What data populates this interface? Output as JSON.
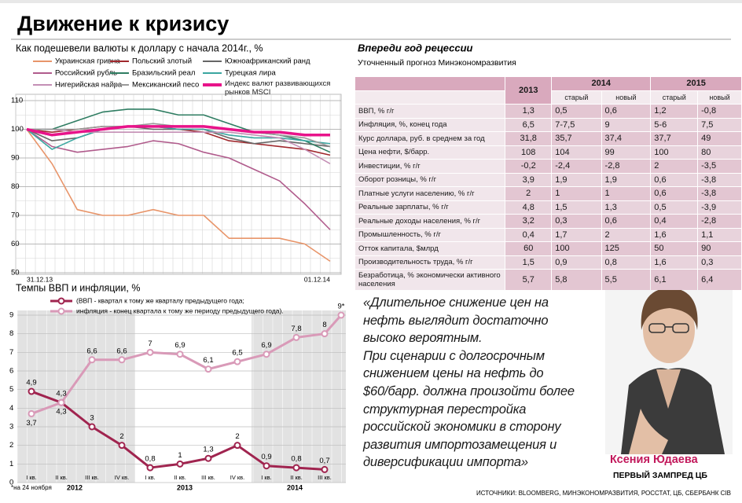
{
  "title": "Движение к кризису",
  "chart_data": [
    {
      "type": "line",
      "title": "Как подешевели валюты к  доллару с начала  2014г., %",
      "categories": [
        "31.12.13",
        null,
        null,
        null,
        null,
        null,
        null,
        null,
        null,
        null,
        null,
        null,
        "01.12.14"
      ],
      "ylim": [
        50,
        110
      ],
      "yticks": [
        50,
        60,
        70,
        80,
        90,
        100,
        110
      ],
      "grid": true,
      "series": [
        {
          "name": "Украинская гривна",
          "color": "#e8956a",
          "values": [
            100,
            88,
            72,
            70,
            70,
            72,
            70,
            70,
            62,
            62,
            62,
            60,
            54
          ]
        },
        {
          "name": "Польский злотый",
          "color": "#a0282d",
          "values": [
            100,
            99,
            100,
            101,
            101,
            101,
            100,
            99,
            96,
            95,
            94,
            93,
            91
          ]
        },
        {
          "name": "Южноафриканский ранд",
          "color": "#666666",
          "values": [
            100,
            96,
            97,
            100,
            101,
            100,
            100,
            100,
            97,
            95,
            96,
            95,
            94
          ]
        },
        {
          "name": "Российский рубль",
          "color": "#b05b8c",
          "values": [
            100,
            94,
            92,
            93,
            94,
            96,
            95,
            92,
            90,
            86,
            82,
            74,
            65
          ]
        },
        {
          "name": "Бразильский реал",
          "color": "#2f7d62",
          "values": [
            100,
            100,
            103,
            106,
            107,
            107,
            105,
            105,
            102,
            99,
            98,
            96,
            92
          ]
        },
        {
          "name": "Турецкая лира",
          "color": "#3aa6a0",
          "values": [
            100,
            93,
            97,
            100,
            101,
            101,
            100,
            100,
            98,
            97,
            97,
            96,
            95
          ]
        },
        {
          "name": "Нигерийская найра",
          "color": "#c48fb5",
          "values": [
            100,
            100,
            99,
            99,
            99,
            99,
            99,
            99,
            99,
            98,
            97,
            93,
            88
          ]
        },
        {
          "name": "Мексиканский песо",
          "color": "#9a9a9a",
          "values": [
            100,
            100,
            100,
            101,
            101,
            102,
            101,
            101,
            100,
            99,
            98,
            97,
            94
          ]
        },
        {
          "name": "Индекс валют развивающихся рынков MSCI",
          "color": "#e8138a",
          "values": [
            100,
            98,
            99,
            100,
            101,
            101,
            101,
            101,
            100,
            99,
            99,
            98,
            98
          ]
        }
      ]
    },
    {
      "type": "line",
      "title": "Темпы ВВП и инфляции, %",
      "categories": [
        "I кв.",
        "II кв.",
        "III кв.",
        "IV кв.",
        "I кв.",
        "II кв.",
        "III кв.",
        "IV кв.",
        "I кв.",
        "II кв.",
        "III кв.",
        null
      ],
      "year_labels": [
        "2012",
        "2013",
        "2014"
      ],
      "ylim": [
        0,
        9
      ],
      "yticks": [
        0,
        1,
        2,
        3,
        4,
        5,
        6,
        7,
        8,
        9
      ],
      "grid": true,
      "footnote": "*на 24 ноября",
      "series": [
        {
          "name": "(ВВП - квартал к тому же кварталу предыдущего года;",
          "color": "#a0244f",
          "values": [
            4.9,
            4.3,
            3,
            2,
            0.8,
            1,
            1.3,
            2,
            0.9,
            0.8,
            0.7,
            null
          ],
          "value_labels": [
            "4,9",
            "4,3",
            "3",
            "2",
            "0,8",
            "1",
            "1,3",
            "2",
            "0,9",
            "0,8",
            "0,7",
            null
          ]
        },
        {
          "name": "инфляция - конец квартала к тому же периоду предыдущего года).",
          "color": "#d99ab8",
          "values": [
            3.7,
            4.3,
            6.6,
            6.6,
            7,
            6.9,
            6.1,
            6.5,
            6.9,
            7.8,
            8,
            9
          ],
          "value_labels": [
            "3,7",
            "4,3",
            "6,6",
            "6,6",
            "7",
            "6,9",
            "6,1",
            "6,5",
            "6,9",
            "7,8",
            "8",
            "9*"
          ]
        }
      ]
    }
  ],
  "table": {
    "title": "Впереди год рецессии",
    "subtitle": "Уточненный прогноз Минэкономразвития",
    "years": [
      "2013",
      "2014",
      "2015"
    ],
    "subheaders": [
      "старый",
      "новый",
      "старый",
      "новый"
    ],
    "rows": [
      [
        "ВВП, % г/г",
        "1,3",
        "0,5",
        "0,6",
        "1,2",
        "-0,8"
      ],
      [
        "Инфляция, %, конец года",
        "6,5",
        "7-7,5",
        "9",
        "5-6",
        "7,5"
      ],
      [
        "Курс доллара, руб. в среднем за год",
        "31,8",
        "35,7",
        "37,4",
        "37,7",
        "49"
      ],
      [
        "Цена нефти, $/барр.",
        "108",
        "104",
        "99",
        "100",
        "80"
      ],
      [
        "Инвестиции, % г/г",
        "-0,2",
        "-2,4",
        "-2,8",
        "2",
        "-3,5"
      ],
      [
        "Оборот розницы, % г/г",
        "3,9",
        "1,9",
        "1,9",
        "0,6",
        "-3,8"
      ],
      [
        "Платные услуги населению, % г/г",
        "2",
        "1",
        "1",
        "0,6",
        "-3,8"
      ],
      [
        "Реальные зарплаты, % г/г",
        "4,8",
        "1,5",
        "1,3",
        "0,5",
        "-3,9"
      ],
      [
        "Реальные доходы населения, % г/г",
        "3,2",
        "0,3",
        "0,6",
        "0,4",
        "-2,8"
      ],
      [
        "Промышленность, % г/г",
        "0,4",
        "1,7",
        "2",
        "1,6",
        "1,1"
      ],
      [
        "Отток капитала, $млрд",
        "60",
        "100",
        "125",
        "50",
        "90"
      ],
      [
        "Производительность труда, % г/г",
        "1,5",
        "0,9",
        "0,8",
        "1,6",
        "0,3"
      ],
      [
        "Безработица, % экономически активного населения",
        "5,7",
        "5,8",
        "5,5",
        "6,1",
        "6,4"
      ]
    ]
  },
  "quote": [
    "«Длительное снижение цен на",
    "нефть выглядит достаточно",
    "высоко вероятным.",
    "При сценарии с долгосрочным",
    "снижением цены на нефть до",
    "$60/барр. должна произойти более",
    "структурная перестройка",
    "российской экономики в сторону",
    "развития импортозамещения и",
    "диверсификации импорта»"
  ],
  "person": {
    "name": "Ксения Юдаева",
    "position": "ПЕРВЫЙ ЗАМПРЕД ЦБ"
  },
  "sources": "ИСТОЧНИКИ: BLOOMBERG, МИНЭКОНОМРАЗВИТИЯ, РОССТАТ, ЦБ, СБЕРБАНК CIB"
}
